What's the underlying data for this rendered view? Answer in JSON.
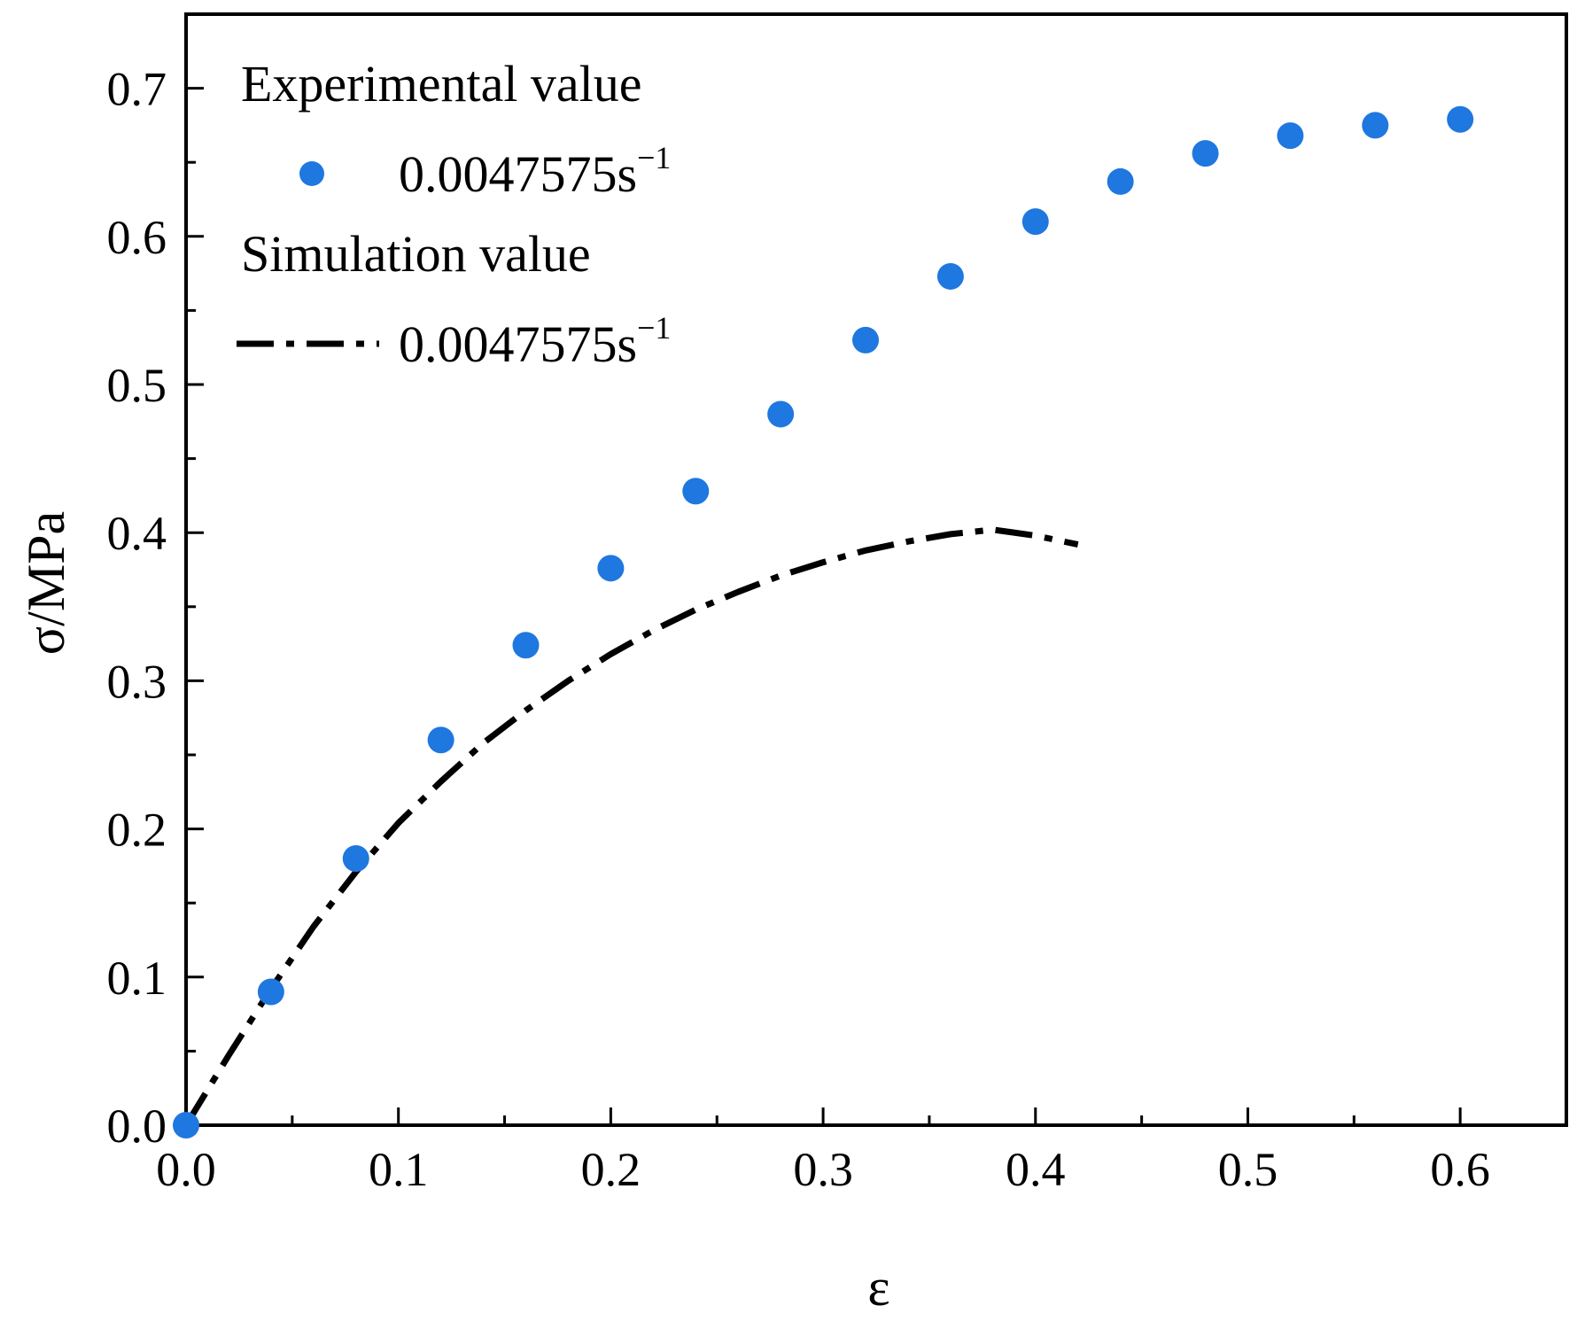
{
  "chart_data": {
    "type": "scatter",
    "title": "",
    "xlabel": "ε",
    "ylabel": "σ/MPa",
    "xlim": [
      0.0,
      0.65
    ],
    "ylim": [
      0.0,
      0.75
    ],
    "x_ticks": [
      0.0,
      0.1,
      0.2,
      0.3,
      0.4,
      0.5,
      0.6
    ],
    "x_tick_labels": [
      "0.0",
      "0.1",
      "0.2",
      "0.3",
      "0.4",
      "0.5",
      "0.6"
    ],
    "y_ticks": [
      0.0,
      0.1,
      0.2,
      0.3,
      0.4,
      0.5,
      0.6,
      0.7
    ],
    "y_tick_labels": [
      "0.0",
      "0.1",
      "0.2",
      "0.3",
      "0.4",
      "0.5",
      "0.6",
      "0.7"
    ],
    "grid": false,
    "legend_position": "top-left",
    "series": [
      {
        "name": "Experimental value",
        "label_base": "0.0047575s",
        "label_sup": "−1",
        "style": "markers",
        "color": "#1f77e0",
        "x": [
          0.0,
          0.04,
          0.08,
          0.12,
          0.16,
          0.2,
          0.24,
          0.28,
          0.32,
          0.36,
          0.4,
          0.44,
          0.48,
          0.52,
          0.56,
          0.6
        ],
        "y": [
          0.0,
          0.09,
          0.18,
          0.26,
          0.324,
          0.376,
          0.428,
          0.48,
          0.53,
          0.573,
          0.61,
          0.637,
          0.656,
          0.668,
          0.675,
          0.679
        ]
      },
      {
        "name": "Simulation value",
        "label_base": "0.0047575s",
        "label_sup": "−1",
        "style": "dash-dot",
        "color": "#000000",
        "x": [
          0.0,
          0.02,
          0.04,
          0.06,
          0.08,
          0.1,
          0.12,
          0.14,
          0.16,
          0.18,
          0.2,
          0.22,
          0.24,
          0.26,
          0.28,
          0.3,
          0.32,
          0.34,
          0.36,
          0.38,
          0.4,
          0.42
        ],
        "y": [
          0.0,
          0.047,
          0.092,
          0.134,
          0.171,
          0.204,
          0.232,
          0.258,
          0.28,
          0.3,
          0.318,
          0.334,
          0.348,
          0.36,
          0.371,
          0.38,
          0.388,
          0.394,
          0.399,
          0.402,
          0.398,
          0.392
        ]
      }
    ]
  }
}
